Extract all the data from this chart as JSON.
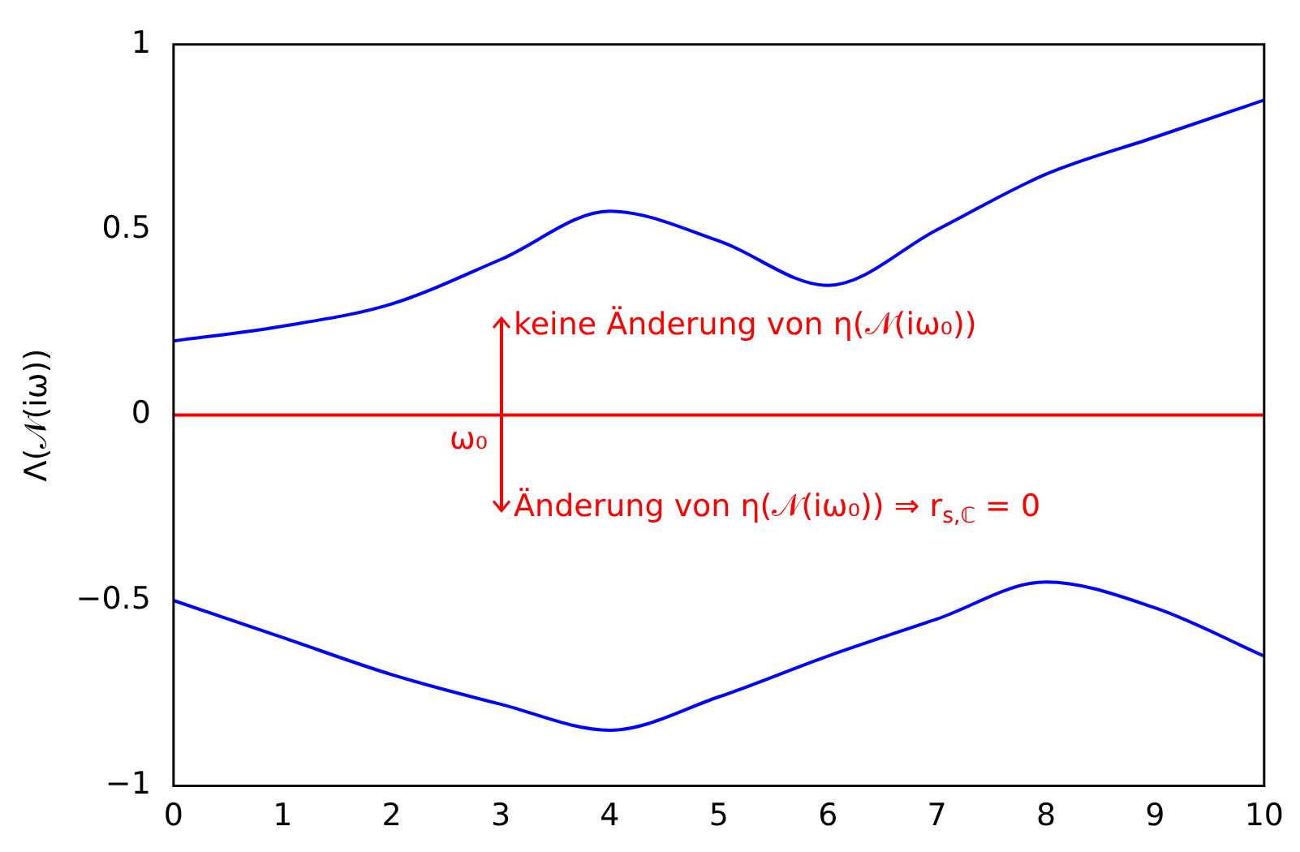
{
  "chart_data": {
    "type": "line",
    "ylabel": "Λ(𝒩(iω))",
    "x": [
      0,
      1,
      2,
      3,
      4,
      5,
      6,
      7,
      8,
      9,
      10
    ],
    "series": [
      {
        "color": "#0000ff",
        "values": [
          0.2,
          0.24,
          0.3,
          0.42,
          0.55,
          0.47,
          0.35,
          0.5,
          0.65,
          0.75,
          0.85
        ]
      },
      {
        "color": "#0000ff",
        "values": [
          -0.5,
          -0.6,
          -0.7,
          -0.78,
          -0.85,
          -0.76,
          -0.65,
          -0.55,
          -0.45,
          -0.52,
          -0.65
        ]
      }
    ],
    "xlim": [
      0,
      10
    ],
    "xticks": [
      0,
      1,
      2,
      3,
      4,
      5,
      6,
      7,
      8,
      9,
      10
    ],
    "ylim": [
      -1,
      1
    ],
    "yticks": [
      {
        "value": -1,
        "label": "−1"
      },
      {
        "value": -0.5,
        "label": "−0.5"
      },
      0,
      0.5,
      1
    ],
    "ref_lines": [
      {
        "axis": "y",
        "value": 0,
        "color": "#ff0000"
      }
    ],
    "annotations": [
      "keine Änderung von η(𝒩(iω₀))",
      "ω₀",
      "Änderung von η(𝒩(iω₀)) ⇒ r$_{s,ℂ}$ = 0"
    ],
    "grid": false,
    "marker": "none",
    "line_style": "solid",
    "legend": false
  }
}
